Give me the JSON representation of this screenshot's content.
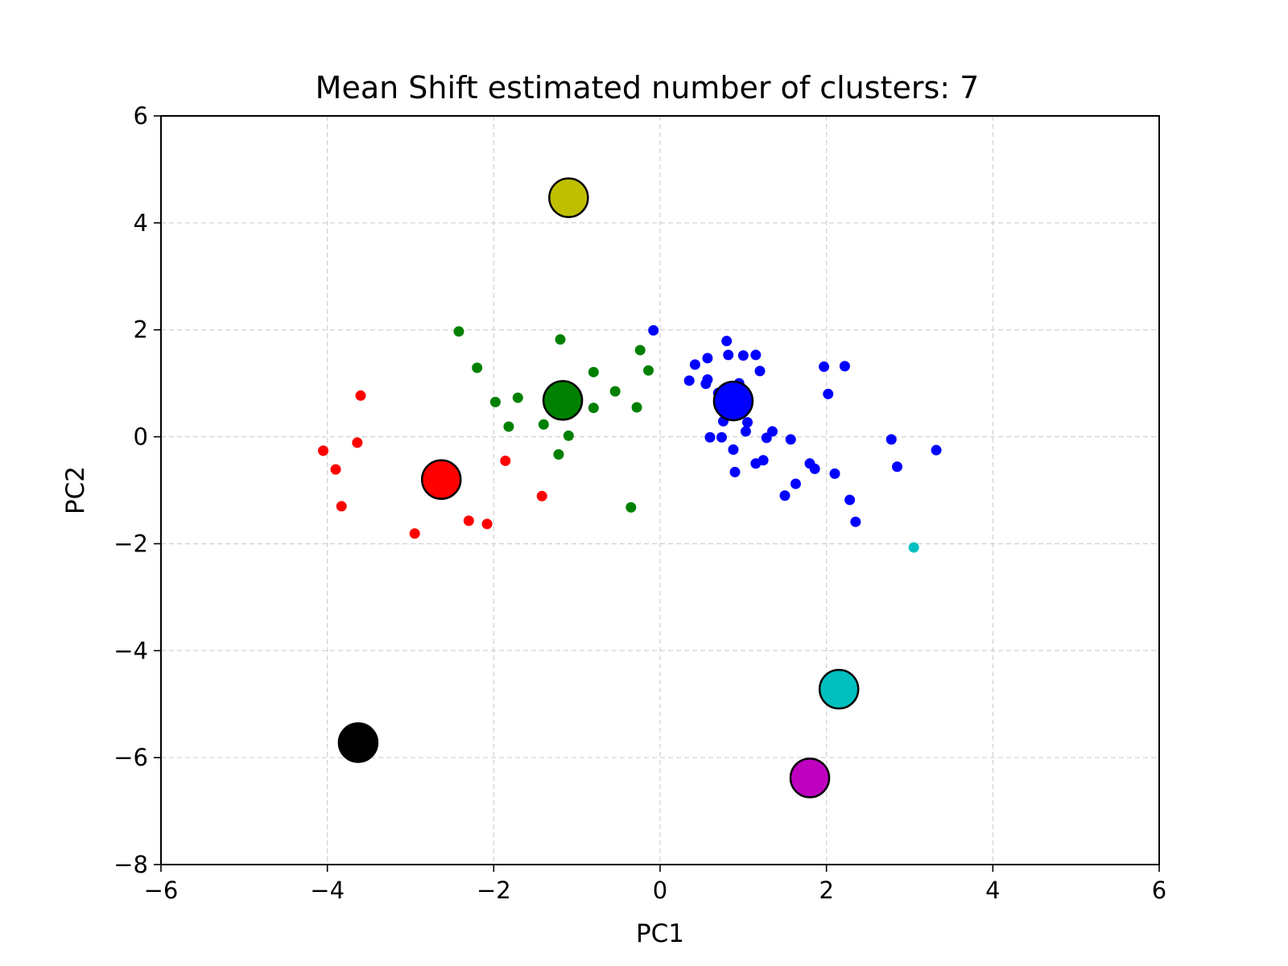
{
  "chart_data": {
    "type": "scatter",
    "title": "Mean Shift estimated number of clusters: 7",
    "xlabel": "PC1",
    "ylabel": "PC2",
    "xlim": [
      -6,
      6
    ],
    "ylim": [
      -8,
      6
    ],
    "xticks": [
      -6,
      -4,
      -2,
      0,
      2,
      4,
      6
    ],
    "yticks": [
      -8,
      -6,
      -4,
      -2,
      0,
      2,
      4,
      6
    ],
    "xtick_labels": [
      "−6",
      "−4",
      "−2",
      "0",
      "2",
      "4",
      "6"
    ],
    "ytick_labels": [
      "−8",
      "−6",
      "−4",
      "−2",
      "0",
      "2",
      "4",
      "6"
    ],
    "grid": true,
    "colors": {
      "red": "#ff0000",
      "green": "#008000",
      "blue": "#0000ff",
      "cyan": "#00bfbf",
      "yellow": "#bfbf00",
      "black": "#000000",
      "magenta": "#bf00bf"
    },
    "series": [
      {
        "color": "red",
        "points": [
          [
            -4.05,
            -0.26
          ],
          [
            -3.9,
            -0.61
          ],
          [
            -3.83,
            -1.3
          ],
          [
            -3.64,
            -0.11
          ],
          [
            -3.6,
            0.77
          ],
          [
            -2.95,
            -1.81
          ],
          [
            -2.62,
            -0.6
          ],
          [
            -2.3,
            -1.57
          ],
          [
            -2.08,
            -1.63
          ],
          [
            -1.86,
            -0.45
          ],
          [
            -1.42,
            -1.11
          ]
        ]
      },
      {
        "color": "green",
        "points": [
          [
            -2.42,
            1.97
          ],
          [
            -2.2,
            1.29
          ],
          [
            -1.98,
            0.65
          ],
          [
            -1.82,
            0.19
          ],
          [
            -1.71,
            0.73
          ],
          [
            -1.4,
            0.23
          ],
          [
            -1.22,
            -0.33
          ],
          [
            -1.2,
            1.82
          ],
          [
            -1.1,
            0.02
          ],
          [
            -0.8,
            1.21
          ],
          [
            -0.8,
            0.54
          ],
          [
            -0.54,
            0.85
          ],
          [
            -0.35,
            -1.32
          ],
          [
            -0.28,
            0.55
          ],
          [
            -0.24,
            1.62
          ],
          [
            -0.14,
            1.24
          ]
        ]
      },
      {
        "color": "blue",
        "points": [
          [
            -0.08,
            1.99
          ],
          [
            0.35,
            1.05
          ],
          [
            0.42,
            1.35
          ],
          [
            0.55,
            0.99
          ],
          [
            0.57,
            1.47
          ],
          [
            0.57,
            1.07
          ],
          [
            0.6,
            -0.01
          ],
          [
            0.7,
            0.82
          ],
          [
            0.74,
            -0.01
          ],
          [
            0.76,
            0.29
          ],
          [
            0.8,
            1.79
          ],
          [
            0.82,
            1.53
          ],
          [
            0.88,
            -0.24
          ],
          [
            0.9,
            -0.66
          ],
          [
            0.95,
            1.0
          ],
          [
            1.0,
            1.52
          ],
          [
            1.03,
            0.1
          ],
          [
            1.05,
            0.27
          ],
          [
            1.15,
            1.53
          ],
          [
            1.15,
            -0.5
          ],
          [
            1.2,
            1.23
          ],
          [
            1.24,
            -0.44
          ],
          [
            1.28,
            -0.02
          ],
          [
            1.35,
            0.1
          ],
          [
            1.5,
            -1.1
          ],
          [
            1.57,
            -0.05
          ],
          [
            1.63,
            -0.88
          ],
          [
            1.8,
            -0.5
          ],
          [
            1.86,
            -0.6
          ],
          [
            1.97,
            1.31
          ],
          [
            2.02,
            0.8
          ],
          [
            2.1,
            -0.69
          ],
          [
            2.22,
            1.32
          ],
          [
            2.28,
            -1.18
          ],
          [
            2.35,
            -1.59
          ],
          [
            2.78,
            -0.05
          ],
          [
            2.85,
            -0.56
          ],
          [
            3.32,
            -0.25
          ]
        ]
      },
      {
        "color": "cyan",
        "points": [
          [
            3.05,
            -2.07
          ]
        ]
      }
    ],
    "centers": [
      {
        "color": "red",
        "x": -2.63,
        "y": -0.8
      },
      {
        "color": "green",
        "x": -1.17,
        "y": 0.68
      },
      {
        "color": "blue",
        "x": 0.88,
        "y": 0.67
      },
      {
        "color": "yellow",
        "x": -1.1,
        "y": 4.47
      },
      {
        "color": "black",
        "x": -3.63,
        "y": -5.72
      },
      {
        "color": "magenta",
        "x": 1.8,
        "y": -6.38
      },
      {
        "color": "cyan",
        "x": 2.15,
        "y": -4.72
      }
    ]
  }
}
